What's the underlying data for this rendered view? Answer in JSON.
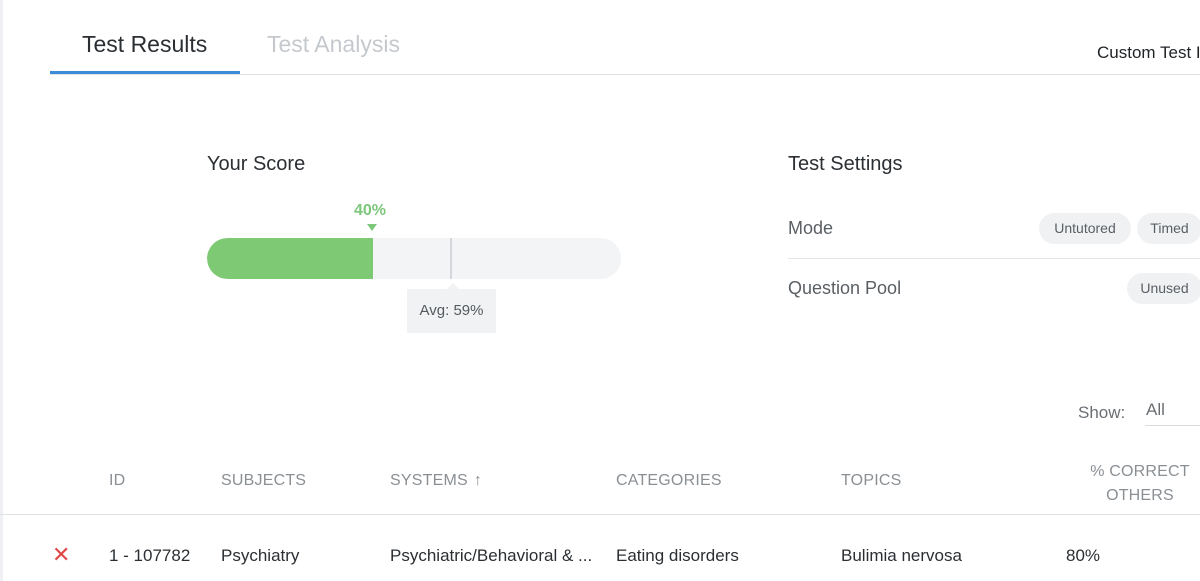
{
  "tabs": [
    {
      "label": "Test Results",
      "active": true
    },
    {
      "label": "Test Analysis",
      "active": false
    }
  ],
  "header": {
    "custom_test_label": "Custom Test I"
  },
  "score": {
    "title": "Your Score",
    "percent_label": "40%",
    "percent": 40,
    "average_label": "Avg: 59%",
    "average": 59
  },
  "settings": {
    "title": "Test Settings",
    "mode_label": "Mode",
    "mode_values": [
      "Untutored",
      "Timed"
    ],
    "pool_label": "Question Pool",
    "pool_value": "Unused"
  },
  "filter": {
    "show_label": "Show:",
    "show_value": "All"
  },
  "table": {
    "columns": {
      "id": "ID",
      "subjects": "SUBJECTS",
      "systems": "SYSTEMS",
      "categories": "CATEGORIES",
      "topics": "TOPICS",
      "correct_others": "% CORRECT OTHERS"
    },
    "sort_icon": "arrow-up-icon",
    "rows": [
      {
        "status_icon": "incorrect-x-icon",
        "id": "1 - 107782",
        "subject": "Psychiatry",
        "system": "Psychiatric/Behavioral & ...",
        "category": "Eating disorders",
        "topic": "Bulimia nervosa",
        "correct_others": "80%"
      }
    ]
  },
  "colors": {
    "accent": "#3c8bd9",
    "score_green": "#7ec974",
    "incorrect_red": "#e04848"
  }
}
